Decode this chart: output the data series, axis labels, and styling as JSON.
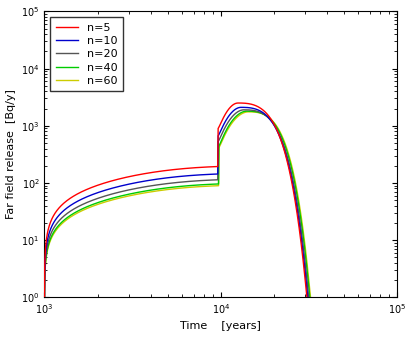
{
  "series": [
    {
      "label": "n=5",
      "color": "#ff0000",
      "lw": 1.0,
      "zorder": 5
    },
    {
      "label": "n=10",
      "color": "#0000cc",
      "lw": 1.0,
      "zorder": 4
    },
    {
      "label": "n=20",
      "color": "#555555",
      "lw": 1.0,
      "zorder": 3
    },
    {
      "label": "n=40",
      "color": "#00cc00",
      "lw": 1.0,
      "zorder": 2
    },
    {
      "label": "n=60",
      "color": "#cccc00",
      "lw": 1.0,
      "zorder": 1
    }
  ],
  "xlim": [
    1000.0,
    100000.0
  ],
  "ylim": [
    1.0,
    100000.0
  ],
  "xlabel": "Time    [years]",
  "ylabel": "Far field release  [Bq/y]",
  "background_color": "#ffffff",
  "legend_fontsize": 8,
  "axis_fontsize": 8,
  "tick_fontsize": 7,
  "n_values": [
    5,
    10,
    20,
    40,
    60
  ],
  "curve_params": {
    "5": {
      "early_scale": 1.0,
      "plateau": 200,
      "peak": 2500,
      "t_step": 9600,
      "t_peak": 12500,
      "fall_tau": 8000,
      "fall_exp": 2.5
    },
    "10": {
      "early_scale": 0.8,
      "plateau": 185,
      "peak": 2100,
      "t_step": 9600,
      "t_peak": 13000,
      "fall_tau": 8000,
      "fall_exp": 2.5
    },
    "20": {
      "early_scale": 0.67,
      "plateau": 175,
      "peak": 1900,
      "t_step": 9600,
      "t_peak": 13500,
      "fall_tau": 8000,
      "fall_exp": 2.5
    },
    "40": {
      "early_scale": 0.59,
      "plateau": 168,
      "peak": 1800,
      "t_step": 9700,
      "t_peak": 14000,
      "fall_tau": 8000,
      "fall_exp": 2.5
    },
    "60": {
      "early_scale": 0.56,
      "plateau": 165,
      "peak": 1750,
      "t_step": 9700,
      "t_peak": 14300,
      "fall_tau": 8000,
      "fall_exp": 2.5
    }
  }
}
